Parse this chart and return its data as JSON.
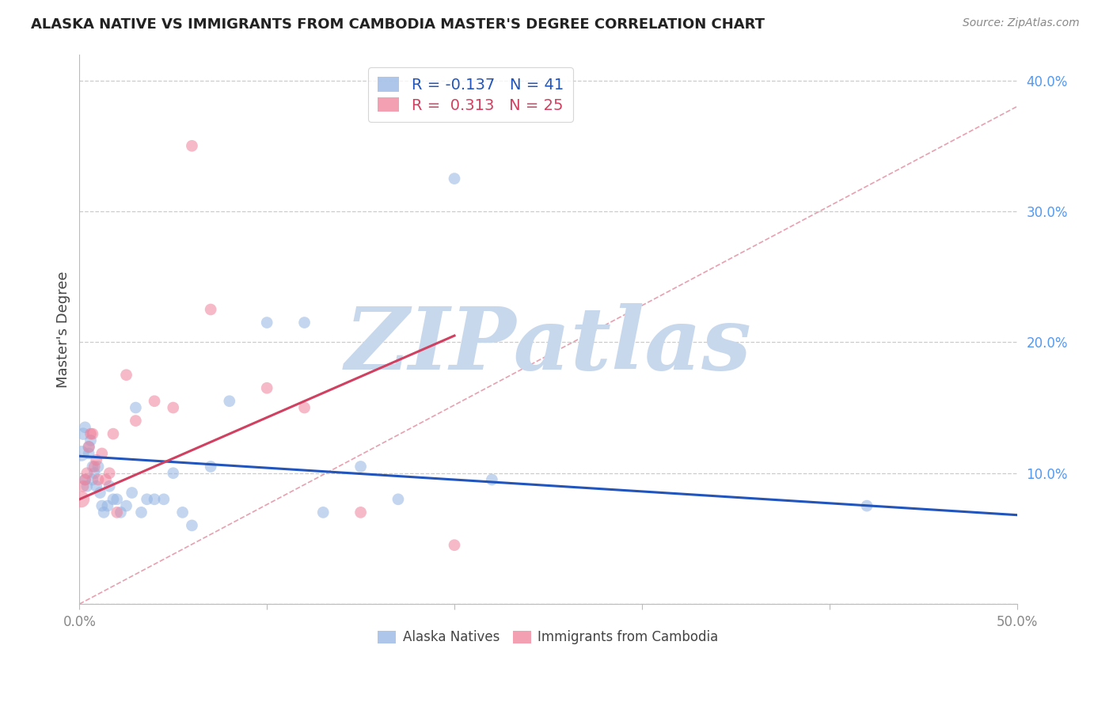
{
  "title": "ALASKA NATIVE VS IMMIGRANTS FROM CAMBODIA MASTER'S DEGREE CORRELATION CHART",
  "source": "Source: ZipAtlas.com",
  "ylabel": "Master's Degree",
  "xlim": [
    0.0,
    0.5
  ],
  "ylim": [
    0.0,
    0.42
  ],
  "xticks": [
    0.0,
    0.1,
    0.2,
    0.3,
    0.4,
    0.5
  ],
  "yticks": [
    0.0,
    0.1,
    0.2,
    0.3,
    0.4
  ],
  "xticklabels": [
    "0.0%",
    "",
    "",
    "",
    "",
    "50.0%"
  ],
  "yticklabels": [
    "",
    "10.0%",
    "20.0%",
    "30.0%",
    "40.0%"
  ],
  "watermark": "ZIPatlas",
  "alaska_color": "#92b4e3",
  "cambodia_color": "#f0809a",
  "alaska_line_color": "#2255bb",
  "cambodia_line_color": "#d04060",
  "dashed_line_color": "#e8a0b0",
  "grid_color": "#cccccc",
  "title_color": "#222222",
  "axis_color": "#888888",
  "ytick_color": "#5599ee",
  "watermark_color": "#c8d8ec",
  "alaska_R": -0.137,
  "alaska_N": 41,
  "cambodia_R": 0.313,
  "cambodia_N": 25,
  "alaska_x": [
    0.001,
    0.002,
    0.003,
    0.003,
    0.004,
    0.005,
    0.005,
    0.006,
    0.007,
    0.007,
    0.008,
    0.009,
    0.01,
    0.011,
    0.012,
    0.013,
    0.015,
    0.016,
    0.018,
    0.02,
    0.022,
    0.025,
    0.028,
    0.03,
    0.033,
    0.036,
    0.04,
    0.045,
    0.05,
    0.055,
    0.06,
    0.07,
    0.08,
    0.1,
    0.12,
    0.13,
    0.15,
    0.17,
    0.2,
    0.22,
    0.42
  ],
  "alaska_y": [
    0.115,
    0.13,
    0.095,
    0.135,
    0.09,
    0.12,
    0.115,
    0.125,
    0.095,
    0.105,
    0.1,
    0.09,
    0.105,
    0.085,
    0.075,
    0.07,
    0.075,
    0.09,
    0.08,
    0.08,
    0.07,
    0.075,
    0.085,
    0.15,
    0.07,
    0.08,
    0.08,
    0.08,
    0.1,
    0.07,
    0.06,
    0.105,
    0.155,
    0.215,
    0.215,
    0.07,
    0.105,
    0.08,
    0.325,
    0.095,
    0.075
  ],
  "alaska_size": [
    80,
    50,
    45,
    45,
    45,
    50,
    45,
    45,
    45,
    45,
    45,
    45,
    45,
    45,
    45,
    45,
    45,
    45,
    45,
    45,
    45,
    45,
    45,
    45,
    45,
    45,
    45,
    45,
    45,
    45,
    45,
    45,
    45,
    45,
    45,
    45,
    45,
    45,
    45,
    45,
    45
  ],
  "cambodia_x": [
    0.001,
    0.002,
    0.003,
    0.004,
    0.005,
    0.006,
    0.007,
    0.008,
    0.009,
    0.01,
    0.012,
    0.014,
    0.016,
    0.018,
    0.02,
    0.025,
    0.03,
    0.04,
    0.05,
    0.06,
    0.07,
    0.1,
    0.12,
    0.15,
    0.2
  ],
  "cambodia_y": [
    0.08,
    0.09,
    0.095,
    0.1,
    0.12,
    0.13,
    0.13,
    0.105,
    0.11,
    0.095,
    0.115,
    0.095,
    0.1,
    0.13,
    0.07,
    0.175,
    0.14,
    0.155,
    0.15,
    0.35,
    0.225,
    0.165,
    0.15,
    0.07,
    0.045
  ],
  "cambodia_size": [
    90,
    45,
    45,
    45,
    45,
    45,
    45,
    45,
    45,
    45,
    45,
    45,
    45,
    45,
    45,
    45,
    45,
    45,
    45,
    45,
    45,
    45,
    45,
    45,
    45
  ],
  "alaska_line_x0": 0.0,
  "alaska_line_x1": 0.5,
  "alaska_line_y0": 0.113,
  "alaska_line_y1": 0.068,
  "cambodia_line_x0": 0.0,
  "cambodia_line_x1": 0.2,
  "cambodia_line_y0": 0.08,
  "cambodia_line_y1": 0.205,
  "dashed_line_x0": 0.0,
  "dashed_line_x1": 0.5,
  "dashed_line_y0": 0.0,
  "dashed_line_y1": 0.38
}
